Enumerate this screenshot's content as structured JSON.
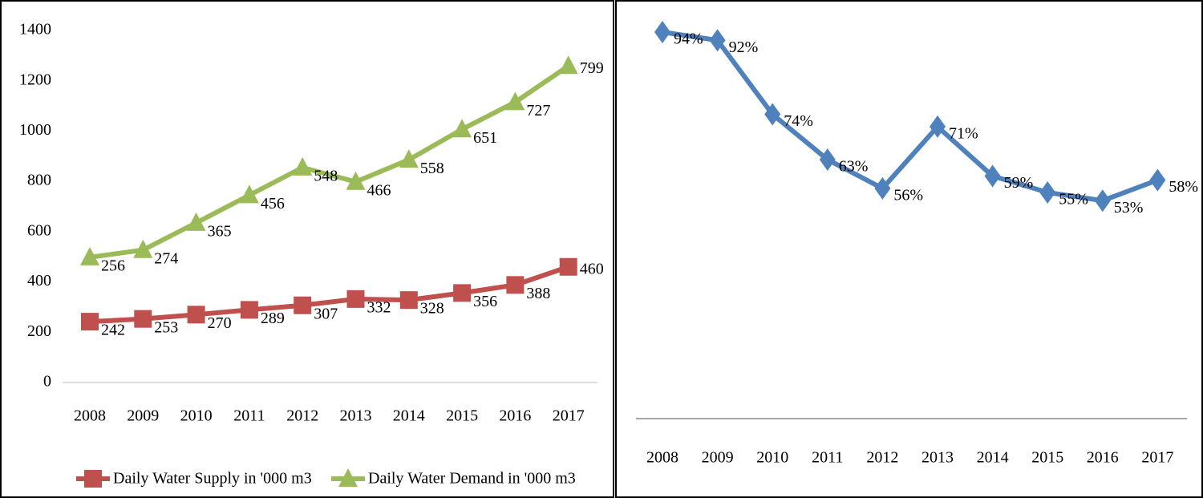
{
  "chart_data": [
    {
      "type": "stacked_line",
      "categories": [
        "2008",
        "2009",
        "2010",
        "2011",
        "2012",
        "2013",
        "2014",
        "2015",
        "2016",
        "2017"
      ],
      "series": [
        {
          "name": "Daily Water Supply in '000 m3",
          "color": "#c0504d",
          "marker": "square",
          "values": [
            242,
            253,
            270,
            289,
            307,
            332,
            328,
            356,
            388,
            460
          ]
        },
        {
          "name": "Daily Water Demand in '000 m3",
          "color": "#9bbb59",
          "marker": "triangle",
          "values": [
            256,
            274,
            365,
            456,
            548,
            466,
            558,
            651,
            727,
            799
          ]
        }
      ],
      "ylim": [
        0,
        1400
      ],
      "yticks": [
        0,
        200,
        400,
        600,
        800,
        1000,
        1200,
        1400
      ],
      "grid": false,
      "legend": "bottom"
    },
    {
      "type": "line",
      "categories": [
        "2008",
        "2009",
        "2010",
        "2011",
        "2012",
        "2013",
        "2014",
        "2015",
        "2016",
        "2017"
      ],
      "series": [
        {
          "color": "#4f81bd",
          "marker": "diamond",
          "values": [
            94,
            92,
            74,
            63,
            56,
            71,
            59,
            55,
            53,
            58
          ],
          "value_labels": [
            "94%",
            "92%",
            "74%",
            "63%",
            "56%",
            "71%",
            "59%",
            "55%",
            "53%",
            "58%"
          ]
        }
      ]
    }
  ]
}
